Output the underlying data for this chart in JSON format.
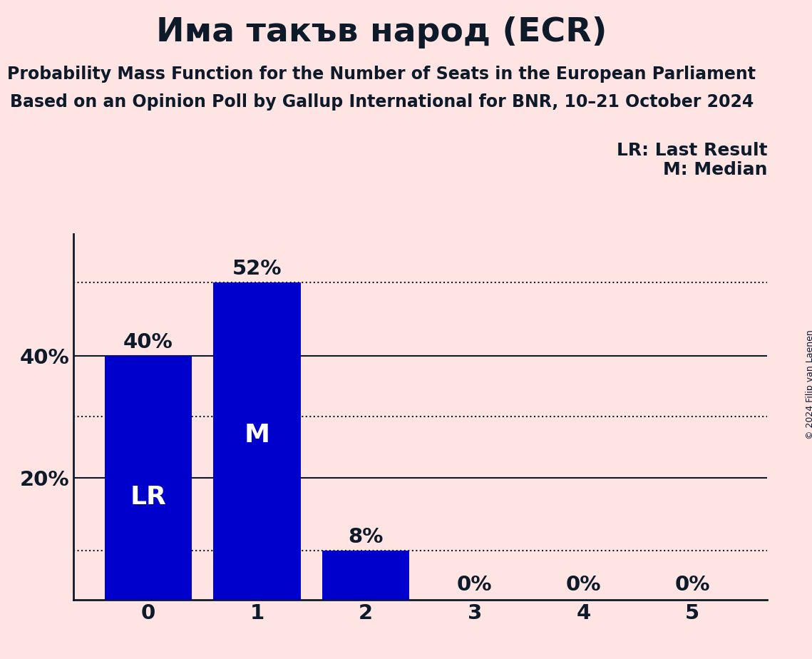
{
  "title": "Има такъв народ (ECR)",
  "subtitle1": "Probability Mass Function for the Number of Seats in the European Parliament",
  "subtitle2": "Based on an Opinion Poll by Gallup International for BNR, 10–21 October 2024",
  "copyright": "© 2024 Filip van Laenen",
  "categories": [
    0,
    1,
    2,
    3,
    4,
    5
  ],
  "values": [
    0.4,
    0.52,
    0.08,
    0.0,
    0.0,
    0.0
  ],
  "value_labels": [
    "40%",
    "52%",
    "8%",
    "0%",
    "0%",
    "0%"
  ],
  "bar_color": "#0000CC",
  "background_color": "#FFE4E4",
  "title_color": "#0d1a2a",
  "label_color": "#0d1a2a",
  "bar_label_color_inside": "#FFFFFF",
  "bar_label_color_outside": "#0d1a2a",
  "yticks": [
    0.2,
    0.4
  ],
  "ytick_labels": [
    "20%",
    "40%"
  ],
  "ylim": [
    0,
    0.6
  ],
  "solid_hlines": [
    0.2,
    0.4
  ],
  "dotted_hlines": [
    0.08,
    0.3,
    0.52
  ],
  "lr_bar": 0,
  "median_bar": 1,
  "legend_lr": "LR: Last Result",
  "legend_m": "M: Median",
  "title_fontsize": 34,
  "subtitle_fontsize": 17,
  "axis_fontsize": 21,
  "bar_label_fontsize": 21,
  "inside_label_fontsize": 26,
  "legend_fontsize": 18,
  "copyright_fontsize": 9
}
